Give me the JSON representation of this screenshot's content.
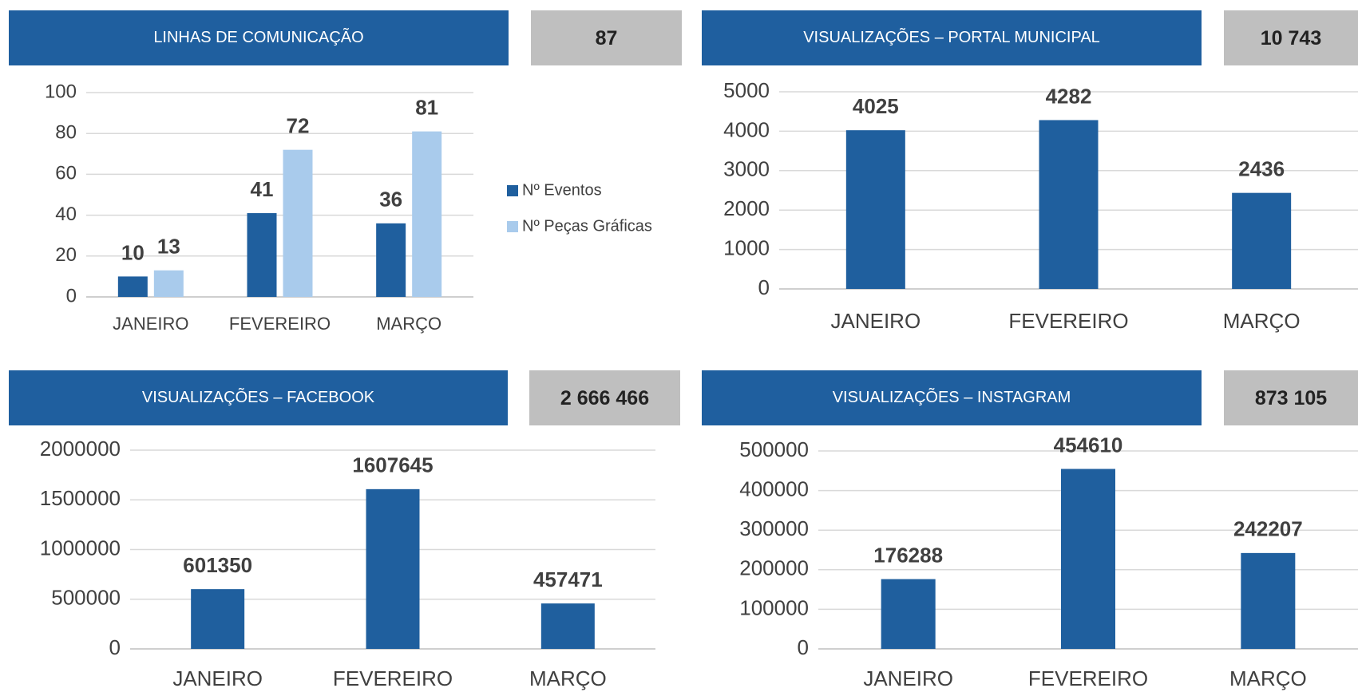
{
  "chart_data": [
    {
      "type": "bar",
      "title": "LINHAS DE COMUNICAÇÃO",
      "total": "87",
      "categories": [
        "JANEIRO",
        "FEVEREIRO",
        "MARÇO"
      ],
      "series": [
        {
          "name": "Nº Eventos",
          "color": "#1f5f9e",
          "values": [
            10,
            41,
            36
          ]
        },
        {
          "name": "Nº Peças Gráficas",
          "color": "#a9cbec",
          "values": [
            13,
            72,
            81
          ]
        }
      ],
      "ylim": [
        0,
        100
      ],
      "yticks": [
        0,
        20,
        40,
        60,
        80,
        100
      ],
      "grid": true,
      "legend": "right"
    },
    {
      "type": "bar",
      "title": "VISUALIZAÇÕES – PORTAL MUNICIPAL",
      "total": "10 743",
      "categories": [
        "JANEIRO",
        "FEVEREIRO",
        "MARÇO"
      ],
      "series": [
        {
          "color": "#1f5f9e",
          "values": [
            4025,
            4282,
            2436
          ]
        }
      ],
      "ylim": [
        0,
        5000
      ],
      "yticks": [
        0,
        1000,
        2000,
        3000,
        4000,
        5000
      ],
      "grid": true
    },
    {
      "type": "bar",
      "title": "VISUALIZAÇÕES – FACEBOOK",
      "total": "2 666 466",
      "categories": [
        "JANEIRO",
        "FEVEREIRO",
        "MARÇO"
      ],
      "series": [
        {
          "color": "#1f5f9e",
          "values": [
            601350,
            1607645,
            457471
          ]
        }
      ],
      "ylim": [
        0,
        2000000
      ],
      "yticks": [
        0,
        500000,
        1000000,
        1500000,
        2000000
      ],
      "grid": true
    },
    {
      "type": "bar",
      "title": "VISUALIZAÇÕES – INSTAGRAM",
      "total": "873 105",
      "categories": [
        "JANEIRO",
        "FEVEREIRO",
        "MARÇO"
      ],
      "series": [
        {
          "color": "#1f5f9e",
          "values": [
            176288,
            454610,
            242207
          ]
        }
      ],
      "ylim": [
        0,
        500000
      ],
      "yticks": [
        0,
        100000,
        200000,
        300000,
        400000,
        500000
      ],
      "grid": true
    }
  ]
}
